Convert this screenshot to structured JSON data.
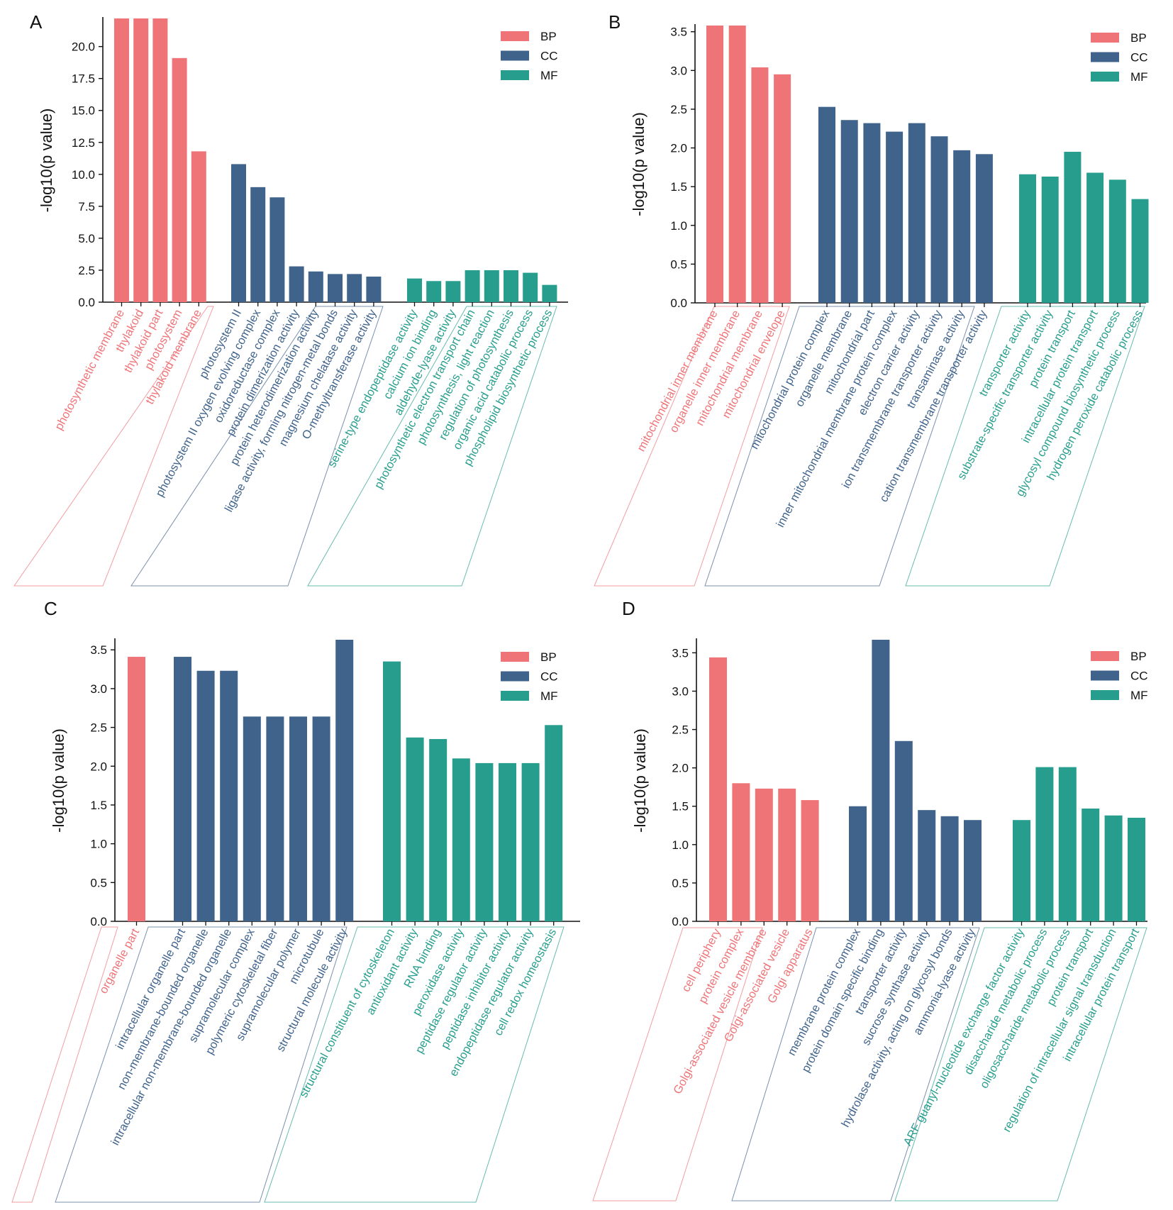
{
  "figure": {
    "legend_labels": [
      "BP",
      "CC",
      "MF"
    ],
    "colors": {
      "BP": "#ee7478",
      "CC": "#3f638b",
      "MF": "#279e8d"
    },
    "ylabel": "-log10(p value)"
  },
  "chart_data": [
    {
      "panel": "A",
      "type": "bar",
      "ylabel": "-log10(p value)",
      "legend_position": "top-right",
      "ylim": [
        0,
        22.2
      ],
      "yticks": [
        0.0,
        2.5,
        5.0,
        7.5,
        10.0,
        12.5,
        15.0,
        17.5,
        20.0
      ],
      "series": [
        {
          "name": "BP",
          "categories": [
            "photosynthetic membrane",
            "thylakoid",
            "thylakoid part",
            "photosystem",
            "thylakoid membrane"
          ],
          "values": [
            22.2,
            22.2,
            22.2,
            19.1,
            11.8
          ]
        },
        {
          "name": "CC",
          "categories": [
            "photosystem II",
            "photosystem II oxygen evolving complex",
            "oxidoreductase complex",
            "protein dimerization activity",
            "protein heterodimerization activity",
            "ligase activity, forming nitrogen-metal bonds",
            "magnesium chelatase activity",
            "O-methyltransferase activity"
          ],
          "values": [
            10.8,
            9.0,
            8.2,
            2.8,
            2.4,
            2.2,
            2.2,
            2.0
          ]
        },
        {
          "name": "MF",
          "categories": [
            "serine-type endopeptidase activity",
            "calcium ion binding",
            "aldehyde-lyase activity",
            "photosynthetic electron transport chain",
            "photosynthesis, light reaction",
            "regulation of photosynthesis",
            "organic acid catabolic process",
            "phospholipid biosynthetic process"
          ],
          "values": [
            1.85,
            1.65,
            1.65,
            2.5,
            2.5,
            2.5,
            2.3,
            1.35
          ]
        }
      ]
    },
    {
      "panel": "B",
      "type": "bar",
      "ylabel": "-log10(p value)",
      "legend_position": "top-right",
      "ylim": [
        0,
        3.58
      ],
      "yticks": [
        0.0,
        0.5,
        1.0,
        1.5,
        2.0,
        2.5,
        3.0,
        3.5
      ],
      "series": [
        {
          "name": "BP",
          "categories": [
            "mitochondrial inner membrane",
            "organelle inner membrane",
            "mitochondrial membrane",
            "mitochondrial envelope"
          ],
          "values": [
            3.58,
            3.58,
            3.04,
            2.95
          ]
        },
        {
          "name": "CC",
          "categories": [
            "mitochondrial protein complex",
            "organelle membrane",
            "mitochondrial part",
            "inner mitochondrial membrane protein complex",
            "electron carrier activity",
            "ion transmembrane transporter activity",
            "transaminase activity",
            "cation transmembrane transporter activity"
          ],
          "values": [
            2.53,
            2.36,
            2.32,
            2.21,
            2.32,
            2.15,
            1.97,
            1.92
          ]
        },
        {
          "name": "MF",
          "categories": [
            "transporter activity",
            "substrate-specific transporter activity",
            "protein transport",
            "intracellular protein transport",
            "glycosyl compound biosynthetic process",
            "hydrogen peroxide catabolic process"
          ],
          "values": [
            1.66,
            1.63,
            1.95,
            1.68,
            1.59,
            1.34
          ]
        }
      ]
    },
    {
      "panel": "C",
      "type": "bar",
      "ylabel": "-log10(p value)",
      "legend_position": "top-right",
      "ylim": [
        0,
        3.63
      ],
      "yticks": [
        0.0,
        0.5,
        1.0,
        1.5,
        2.0,
        2.5,
        3.0,
        3.5
      ],
      "series": [
        {
          "name": "BP",
          "categories": [
            "organelle part"
          ],
          "values": [
            3.41
          ]
        },
        {
          "name": "CC",
          "categories": [
            "intracellular organelle part",
            "non-membrane-bounded organelle",
            "intracellular non-membrane-bounded organelle",
            "supramolecular complex",
            "polymeric cytoskeletal fiber",
            "supramolecular polymer",
            "microtubule",
            "structural molecule activity"
          ],
          "values": [
            3.41,
            3.23,
            3.23,
            2.64,
            2.64,
            2.64,
            2.64,
            3.63
          ]
        },
        {
          "name": "MF",
          "categories": [
            "structural constituent of cytoskeleton",
            "antioxidant activity",
            "RNA binding",
            "peroxidase activity",
            "peptidase regulator activity",
            "peptidase inhibitor activity",
            "endopeptidase regulator activity",
            "cell redox homeostasis"
          ],
          "values": [
            3.35,
            2.37,
            2.35,
            2.1,
            2.04,
            2.04,
            2.04,
            2.53
          ]
        }
      ]
    },
    {
      "panel": "D",
      "type": "bar",
      "ylabel": "-log10(p value)",
      "legend_position": "top-right",
      "ylim": [
        0,
        3.67
      ],
      "yticks": [
        0.0,
        0.5,
        1.0,
        1.5,
        2.0,
        2.5,
        3.0,
        3.5
      ],
      "series": [
        {
          "name": "BP",
          "categories": [
            "cell periphery",
            "protein complex",
            "Golgi-associated vesicle membrane",
            "Golgi-associated vesicle",
            "Golgi apparatus"
          ],
          "values": [
            3.44,
            1.8,
            1.73,
            1.73,
            1.58
          ]
        },
        {
          "name": "CC",
          "categories": [
            "membrane protein complex",
            "protein domain specific binding",
            "transporter activity",
            "sucrose synthase activity",
            "hydrolase activity, acting on glycosyl bonds",
            "ammonia-lyase activity"
          ],
          "values": [
            1.5,
            3.67,
            2.35,
            1.45,
            1.37,
            1.32
          ]
        },
        {
          "name": "MF",
          "categories": [
            "ARF guanyl-nucleotide exchange factor activity",
            "disaccharide metabolic process",
            "oligosaccharide metabolic process",
            "protein transport",
            "regulation of intracellular signal transduction",
            "intracellular protein transport"
          ],
          "values": [
            1.32,
            2.01,
            2.01,
            1.47,
            1.38,
            1.35
          ]
        }
      ]
    }
  ]
}
